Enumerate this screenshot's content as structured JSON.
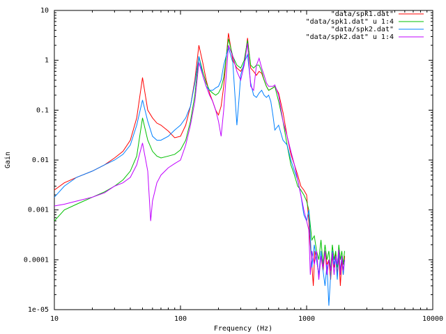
{
  "chart_data": {
    "type": "line",
    "title": "",
    "xlabel": "Frequency (Hz)",
    "ylabel": "Gain",
    "x_scale": "log",
    "y_scale": "log",
    "xlim": [
      10,
      10000
    ],
    "ylim": [
      1e-05,
      10
    ],
    "grid": false,
    "legend_position": "top-right",
    "x_ticks": [
      {
        "value": 10,
        "label": "10"
      },
      {
        "value": 100,
        "label": "100"
      },
      {
        "value": 1000,
        "label": "1000"
      },
      {
        "value": 10000,
        "label": "10000"
      }
    ],
    "y_ticks": [
      {
        "value": 10,
        "label": "10"
      },
      {
        "value": 1,
        "label": "1"
      },
      {
        "value": 0.1,
        "label": "0.1"
      },
      {
        "value": 0.01,
        "label": "0.01"
      },
      {
        "value": 0.001,
        "label": "0.001"
      },
      {
        "value": 0.0001,
        "label": "0.0001"
      },
      {
        "value": 1e-05,
        "label": "1e-05"
      }
    ],
    "series": [
      {
        "name": "\"data/spk1.dat\"",
        "color": "#ff0000",
        "points": [
          [
            10,
            0.0025
          ],
          [
            12,
            0.0035
          ],
          [
            15,
            0.0045
          ],
          [
            20,
            0.006
          ],
          [
            25,
            0.008
          ],
          [
            30,
            0.011
          ],
          [
            35,
            0.015
          ],
          [
            40,
            0.025
          ],
          [
            45,
            0.07
          ],
          [
            50,
            0.45
          ],
          [
            55,
            0.1
          ],
          [
            60,
            0.07
          ],
          [
            65,
            0.055
          ],
          [
            70,
            0.05
          ],
          [
            80,
            0.038
          ],
          [
            90,
            0.028
          ],
          [
            100,
            0.03
          ],
          [
            110,
            0.05
          ],
          [
            120,
            0.12
          ],
          [
            130,
            0.4
          ],
          [
            140,
            2.0
          ],
          [
            150,
            0.9
          ],
          [
            160,
            0.4
          ],
          [
            170,
            0.22
          ],
          [
            180,
            0.15
          ],
          [
            190,
            0.1
          ],
          [
            200,
            0.08
          ],
          [
            210,
            0.12
          ],
          [
            220,
            0.3
          ],
          [
            240,
            3.5
          ],
          [
            260,
            1.0
          ],
          [
            280,
            0.7
          ],
          [
            300,
            0.6
          ],
          [
            320,
            0.8
          ],
          [
            340,
            2.8
          ],
          [
            360,
            0.7
          ],
          [
            380,
            0.6
          ],
          [
            400,
            0.5
          ],
          [
            420,
            0.6
          ],
          [
            440,
            0.55
          ],
          [
            460,
            0.4
          ],
          [
            480,
            0.3
          ],
          [
            500,
            0.25
          ],
          [
            540,
            0.28
          ],
          [
            560,
            0.3
          ],
          [
            600,
            0.22
          ],
          [
            650,
            0.09
          ],
          [
            700,
            0.03
          ],
          [
            750,
            0.013
          ],
          [
            800,
            0.008
          ],
          [
            850,
            0.005
          ],
          [
            900,
            0.003
          ],
          [
            950,
            0.0025
          ],
          [
            1000,
            0.002
          ],
          [
            1040,
            0.0006
          ],
          [
            1070,
            0.0002
          ],
          [
            1100,
            8e-05
          ],
          [
            1130,
            3e-05
          ],
          [
            1160,
            0.00015
          ],
          [
            1200,
            0.0001
          ],
          [
            1250,
            5e-05
          ],
          [
            1300,
            0.00012
          ],
          [
            1350,
            6e-05
          ],
          [
            1400,
            0.00015
          ],
          [
            1450,
            8e-05
          ],
          [
            1500,
            0.0001
          ],
          [
            1550,
            4e-05
          ],
          [
            1600,
            0.00012
          ],
          [
            1650,
            7e-05
          ],
          [
            1700,
            0.00014
          ],
          [
            1750,
            5e-05
          ],
          [
            1800,
            0.00012
          ],
          [
            1850,
            3e-05
          ],
          [
            1900,
            0.0001
          ],
          [
            1950,
            5e-05
          ],
          [
            2000,
            0.00012
          ]
        ]
      },
      {
        "name": "\"data/spk1.dat\" u 1:4",
        "color": "#00c000",
        "points": [
          [
            10,
            0.0006
          ],
          [
            12,
            0.001
          ],
          [
            15,
            0.0013
          ],
          [
            20,
            0.0018
          ],
          [
            25,
            0.0023
          ],
          [
            30,
            0.003
          ],
          [
            35,
            0.004
          ],
          [
            40,
            0.006
          ],
          [
            45,
            0.012
          ],
          [
            50,
            0.07
          ],
          [
            55,
            0.025
          ],
          [
            60,
            0.015
          ],
          [
            65,
            0.012
          ],
          [
            70,
            0.011
          ],
          [
            80,
            0.012
          ],
          [
            90,
            0.013
          ],
          [
            100,
            0.016
          ],
          [
            110,
            0.025
          ],
          [
            120,
            0.06
          ],
          [
            130,
            0.2
          ],
          [
            140,
            1.2
          ],
          [
            150,
            0.6
          ],
          [
            160,
            0.35
          ],
          [
            170,
            0.25
          ],
          [
            180,
            0.22
          ],
          [
            190,
            0.2
          ],
          [
            200,
            0.22
          ],
          [
            210,
            0.28
          ],
          [
            220,
            0.45
          ],
          [
            240,
            2.7
          ],
          [
            260,
            1.2
          ],
          [
            280,
            0.8
          ],
          [
            300,
            0.7
          ],
          [
            320,
            1.0
          ],
          [
            340,
            2.5
          ],
          [
            360,
            0.8
          ],
          [
            380,
            0.7
          ],
          [
            400,
            0.8
          ],
          [
            420,
            0.8
          ],
          [
            440,
            0.6
          ],
          [
            460,
            0.4
          ],
          [
            480,
            0.3
          ],
          [
            500,
            0.25
          ],
          [
            540,
            0.28
          ],
          [
            560,
            0.3
          ],
          [
            600,
            0.15
          ],
          [
            650,
            0.06
          ],
          [
            700,
            0.02
          ],
          [
            750,
            0.008
          ],
          [
            800,
            0.005
          ],
          [
            850,
            0.003
          ],
          [
            900,
            0.0025
          ],
          [
            950,
            0.002
          ],
          [
            1000,
            0.0015
          ],
          [
            1040,
            0.001
          ],
          [
            1070,
            0.0005
          ],
          [
            1100,
            0.00025
          ],
          [
            1150,
            0.0003
          ],
          [
            1200,
            0.00015
          ],
          [
            1250,
            0.0001
          ],
          [
            1300,
            0.00025
          ],
          [
            1350,
            8e-05
          ],
          [
            1400,
            0.0002
          ],
          [
            1450,
            0.0001
          ],
          [
            1500,
            0.00015
          ],
          [
            1550,
            6e-05
          ],
          [
            1600,
            0.0002
          ],
          [
            1650,
            0.0001
          ],
          [
            1700,
            0.00015
          ],
          [
            1750,
            7e-05
          ],
          [
            1800,
            0.0002
          ],
          [
            1850,
            0.0001
          ],
          [
            1900,
            0.00015
          ],
          [
            1950,
            8e-05
          ],
          [
            2000,
            0.00015
          ]
        ]
      },
      {
        "name": "\"data/spk2.dat\"",
        "color": "#0080ff",
        "points": [
          [
            10,
            0.0018
          ],
          [
            12,
            0.003
          ],
          [
            15,
            0.0045
          ],
          [
            20,
            0.006
          ],
          [
            25,
            0.008
          ],
          [
            30,
            0.01
          ],
          [
            35,
            0.013
          ],
          [
            40,
            0.02
          ],
          [
            45,
            0.05
          ],
          [
            50,
            0.16
          ],
          [
            55,
            0.06
          ],
          [
            60,
            0.03
          ],
          [
            65,
            0.025
          ],
          [
            70,
            0.025
          ],
          [
            80,
            0.03
          ],
          [
            90,
            0.04
          ],
          [
            100,
            0.05
          ],
          [
            110,
            0.07
          ],
          [
            120,
            0.12
          ],
          [
            130,
            0.35
          ],
          [
            140,
            1.2
          ],
          [
            150,
            0.5
          ],
          [
            160,
            0.3
          ],
          [
            170,
            0.25
          ],
          [
            180,
            0.25
          ],
          [
            190,
            0.28
          ],
          [
            200,
            0.3
          ],
          [
            210,
            0.4
          ],
          [
            220,
            0.8
          ],
          [
            240,
            1.8
          ],
          [
            260,
            0.9
          ],
          [
            280,
            0.05
          ],
          [
            290,
            0.15
          ],
          [
            300,
            0.5
          ],
          [
            320,
            0.9
          ],
          [
            340,
            1.3
          ],
          [
            360,
            0.35
          ],
          [
            380,
            0.2
          ],
          [
            400,
            0.18
          ],
          [
            420,
            0.22
          ],
          [
            440,
            0.25
          ],
          [
            460,
            0.2
          ],
          [
            480,
            0.18
          ],
          [
            500,
            0.2
          ],
          [
            520,
            0.15
          ],
          [
            540,
            0.08
          ],
          [
            560,
            0.04
          ],
          [
            600,
            0.05
          ],
          [
            650,
            0.025
          ],
          [
            700,
            0.02
          ],
          [
            750,
            0.01
          ],
          [
            800,
            0.006
          ],
          [
            850,
            0.004
          ],
          [
            900,
            0.002
          ],
          [
            950,
            0.0008
          ],
          [
            1000,
            0.0006
          ],
          [
            1040,
            0.001
          ],
          [
            1070,
            0.0003
          ],
          [
            1100,
            7e-05
          ],
          [
            1150,
            0.0002
          ],
          [
            1200,
            0.0001
          ],
          [
            1250,
            5e-05
          ],
          [
            1300,
            0.00015
          ],
          [
            1350,
            6e-05
          ],
          [
            1400,
            3e-05
          ],
          [
            1450,
            8e-05
          ],
          [
            1500,
            1.2e-05
          ],
          [
            1550,
            5e-05
          ],
          [
            1600,
            0.00015
          ],
          [
            1650,
            8e-05
          ],
          [
            1700,
            0.00012
          ],
          [
            1750,
            4e-05
          ],
          [
            1800,
            0.00015
          ],
          [
            1850,
            6e-05
          ],
          [
            1900,
            0.00012
          ],
          [
            1950,
            5e-05
          ],
          [
            2000,
            0.0001
          ]
        ]
      },
      {
        "name": "\"data/spk2.dat\" u 1:4",
        "color": "#c000ff",
        "points": [
          [
            10,
            0.0012
          ],
          [
            12,
            0.0013
          ],
          [
            15,
            0.0015
          ],
          [
            20,
            0.0018
          ],
          [
            25,
            0.0022
          ],
          [
            30,
            0.003
          ],
          [
            35,
            0.0035
          ],
          [
            40,
            0.0045
          ],
          [
            45,
            0.008
          ],
          [
            50,
            0.022
          ],
          [
            55,
            0.006
          ],
          [
            58,
            0.0006
          ],
          [
            60,
            0.0015
          ],
          [
            65,
            0.0035
          ],
          [
            70,
            0.005
          ],
          [
            80,
            0.007
          ],
          [
            90,
            0.0085
          ],
          [
            100,
            0.01
          ],
          [
            110,
            0.02
          ],
          [
            120,
            0.05
          ],
          [
            130,
            0.15
          ],
          [
            140,
            0.9
          ],
          [
            150,
            0.5
          ],
          [
            160,
            0.3
          ],
          [
            170,
            0.2
          ],
          [
            180,
            0.15
          ],
          [
            190,
            0.1
          ],
          [
            200,
            0.06
          ],
          [
            210,
            0.03
          ],
          [
            220,
            0.1
          ],
          [
            240,
            2.0
          ],
          [
            260,
            1.2
          ],
          [
            280,
            0.6
          ],
          [
            300,
            0.4
          ],
          [
            320,
            0.8
          ],
          [
            340,
            2.2
          ],
          [
            360,
            0.3
          ],
          [
            380,
            0.25
          ],
          [
            400,
            0.8
          ],
          [
            420,
            1.1
          ],
          [
            440,
            0.7
          ],
          [
            460,
            0.5
          ],
          [
            480,
            0.35
          ],
          [
            500,
            0.3
          ],
          [
            540,
            0.3
          ],
          [
            560,
            0.32
          ],
          [
            600,
            0.2
          ],
          [
            650,
            0.06
          ],
          [
            700,
            0.03
          ],
          [
            750,
            0.015
          ],
          [
            800,
            0.008
          ],
          [
            850,
            0.004
          ],
          [
            900,
            0.002
          ],
          [
            950,
            0.001
          ],
          [
            1000,
            0.0006
          ],
          [
            1040,
            0.0004
          ],
          [
            1070,
            5e-05
          ],
          [
            1100,
            0.00015
          ],
          [
            1150,
            8e-05
          ],
          [
            1200,
            0.00015
          ],
          [
            1250,
            4e-05
          ],
          [
            1300,
            0.00012
          ],
          [
            1350,
            7e-05
          ],
          [
            1400,
            0.00015
          ],
          [
            1450,
            5e-05
          ],
          [
            1500,
            0.0001
          ],
          [
            1550,
            6e-05
          ],
          [
            1600,
            0.00014
          ],
          [
            1650,
            5e-05
          ],
          [
            1700,
            0.00012
          ],
          [
            1750,
            8e-05
          ],
          [
            1800,
            0.00016
          ],
          [
            1850,
            5e-05
          ],
          [
            1900,
            0.00012
          ],
          [
            1950,
            6e-05
          ],
          [
            2000,
            0.0001
          ]
        ]
      }
    ]
  }
}
